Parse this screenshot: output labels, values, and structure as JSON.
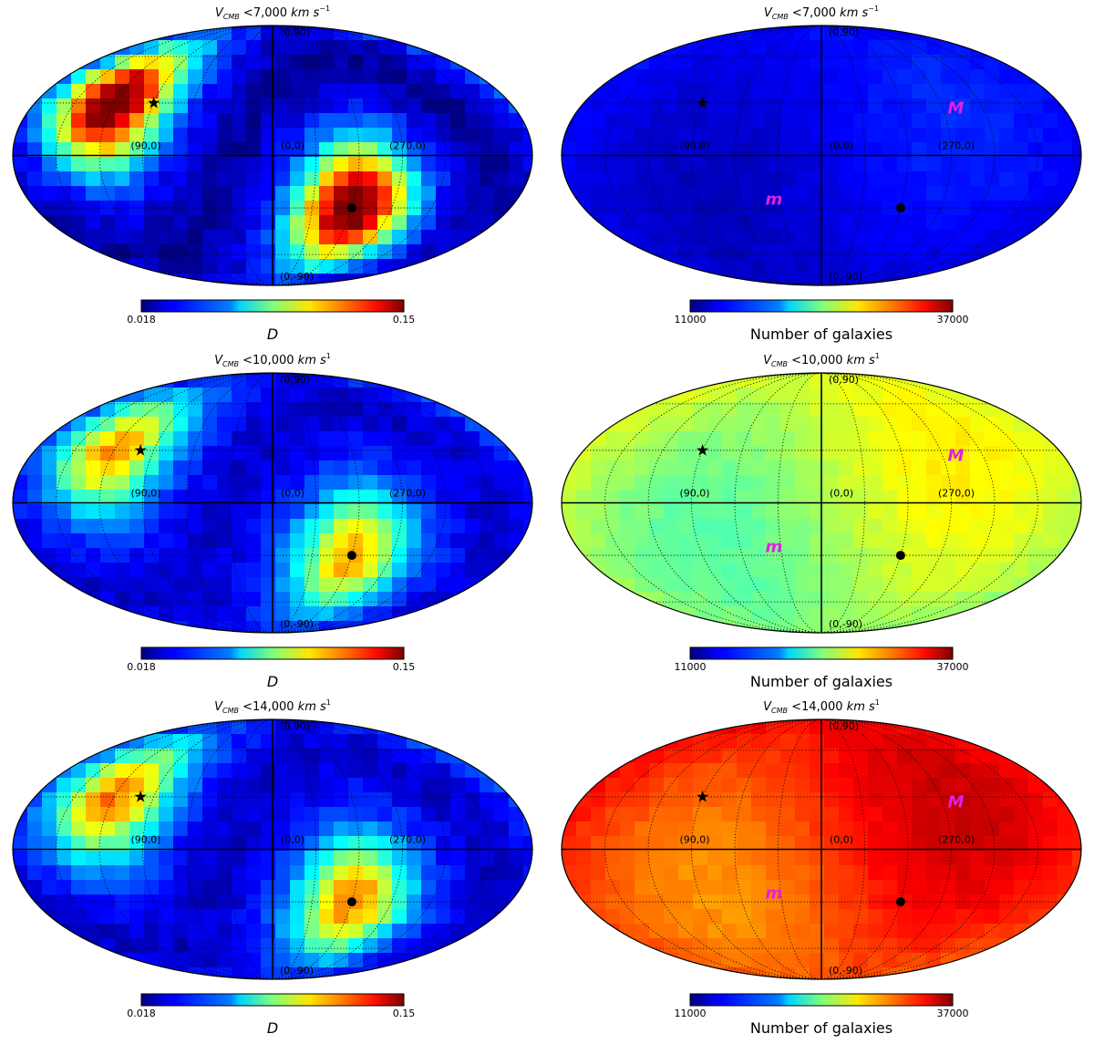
{
  "chart_data": [
    {
      "type": "heatmap",
      "projection": "mollweide",
      "title_var": "V",
      "title_sub": "CMB",
      "title_value": "<7,000",
      "title_unit": "km s",
      "title_exp": "−1",
      "metric": "D",
      "colorbar_label": "D",
      "colorbar_min_label": "0.018",
      "colorbar_max_label": "0.15",
      "value_range": [
        0.018,
        0.15
      ],
      "colormap": "jet",
      "grid_labels": [
        "(0,90)",
        "(90,0)",
        "(0,0)",
        "(270,0)",
        "(0,-90)"
      ],
      "star": {
        "l": 90,
        "b": 30
      },
      "dot": {
        "l": 300,
        "b": -30
      },
      "pattern": {
        "amplitude": 0.95,
        "offset": 0.02,
        "ring_dip": -0.5,
        "noise": 0.04,
        "seed": 1
      },
      "markers": []
    },
    {
      "type": "heatmap",
      "projection": "mollweide",
      "title_var": "V",
      "title_sub": "CMB",
      "title_value": "<7,000",
      "title_unit": "km s",
      "title_exp": "−1",
      "metric": "Number of galaxies",
      "colorbar_label": "Number of galaxies",
      "colorbar_min_label": "11000",
      "colorbar_max_label": "37000",
      "value_range": [
        11000,
        37000
      ],
      "colormap": "jet",
      "grid_labels": [
        "(0,90)",
        "(90,0)",
        "(0,0)",
        "(270,0)",
        "(0,-90)"
      ],
      "star": {
        "l": 90,
        "b": 30
      },
      "dot": {
        "l": 300,
        "b": -30
      },
      "pattern": {
        "base": 0.11,
        "dipole": 0.05,
        "noise": 0.015,
        "seed": 2
      },
      "markers": [
        {
          "label": "M",
          "l": 260,
          "b": 27
        },
        {
          "label": "m",
          "l": 35,
          "b": -25
        }
      ]
    },
    {
      "type": "heatmap",
      "projection": "mollweide",
      "title_var": "V",
      "title_sub": "CMB",
      "title_value": "<10,000",
      "title_unit": "km s",
      "title_exp": "1",
      "metric": "D",
      "colorbar_label": "D",
      "colorbar_min_label": "0.018",
      "colorbar_max_label": "0.15",
      "value_range": [
        0.018,
        0.15
      ],
      "colormap": "jet",
      "grid_labels": [
        "(0,90)",
        "(90,0)",
        "(0,0)",
        "(270,0)",
        "(0,-90)"
      ],
      "star": {
        "l": 100,
        "b": 30
      },
      "dot": {
        "l": 300,
        "b": -30
      },
      "pattern": {
        "amplitude": 0.58,
        "offset": 0.04,
        "ring_dip": -0.35,
        "noise": 0.035,
        "seed": 3
      },
      "markers": []
    },
    {
      "type": "heatmap",
      "projection": "mollweide",
      "title_var": "V",
      "title_sub": "CMB",
      "title_value": "<10,000",
      "title_unit": "km s",
      "title_exp": "1",
      "metric": "Number of galaxies",
      "colorbar_label": "Number of galaxies",
      "colorbar_min_label": "11000",
      "colorbar_max_label": "37000",
      "value_range": [
        11000,
        37000
      ],
      "colormap": "jet",
      "grid_labels": [
        "(0,90)",
        "(90,0)",
        "(0,0)",
        "(270,0)",
        "(0,-90)"
      ],
      "star": {
        "l": 90,
        "b": 30
      },
      "dot": {
        "l": 300,
        "b": -30
      },
      "pattern": {
        "base": 0.55,
        "dipole": 0.09,
        "noise": 0.015,
        "seed": 4
      },
      "markers": [
        {
          "label": "M",
          "l": 260,
          "b": 27
        },
        {
          "label": "m",
          "l": 35,
          "b": -25
        }
      ]
    },
    {
      "type": "heatmap",
      "projection": "mollweide",
      "title_var": "V",
      "title_sub": "CMB",
      "title_value": "<14,000",
      "title_unit": "km s",
      "title_exp": "1",
      "metric": "D",
      "colorbar_label": "D",
      "colorbar_min_label": "0.018",
      "colorbar_max_label": "0.15",
      "value_range": [
        0.018,
        0.15
      ],
      "colormap": "jet",
      "grid_labels": [
        "(0,90)",
        "(90,0)",
        "(0,0)",
        "(270,0)",
        "(0,-90)"
      ],
      "star": {
        "l": 100,
        "b": 30
      },
      "dot": {
        "l": 300,
        "b": -30
      },
      "pattern": {
        "amplitude": 0.62,
        "offset": 0.04,
        "ring_dip": -0.38,
        "noise": 0.035,
        "seed": 5
      },
      "markers": []
    },
    {
      "type": "heatmap",
      "projection": "mollweide",
      "title_var": "V",
      "title_sub": "CMB",
      "title_value": "<14,000",
      "title_unit": "km s",
      "title_exp": "1",
      "metric": "Number of galaxies",
      "colorbar_label": "Number of galaxies",
      "colorbar_min_label": "11000",
      "colorbar_max_label": "37000",
      "value_range": [
        11000,
        37000
      ],
      "colormap": "jet",
      "grid_labels": [
        "(0,90)",
        "(90,0)",
        "(0,0)",
        "(270,0)",
        "(0,-90)"
      ],
      "star": {
        "l": 90,
        "b": 30
      },
      "dot": {
        "l": 300,
        "b": -30
      },
      "pattern": {
        "base": 0.83,
        "dipole": 0.1,
        "noise": 0.015,
        "seed": 6
      },
      "markers": [
        {
          "label": "M",
          "l": 260,
          "b": 27
        },
        {
          "label": "m",
          "l": 35,
          "b": -25
        }
      ]
    }
  ]
}
